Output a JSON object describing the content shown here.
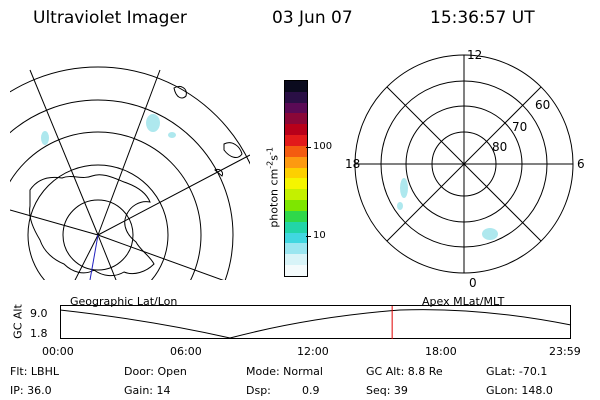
{
  "header": {
    "title": "Ultraviolet Imager",
    "date": "03 Jun 07",
    "time": "15:36:57 UT"
  },
  "geo_panel": {
    "label": "Geographic Lat/Lon"
  },
  "apex_panel": {
    "label": "Apex MLat/MLT",
    "mlt_labels": {
      "top": "12",
      "left": "18",
      "right": "6",
      "bottom": "0"
    },
    "mlat_labels": [
      "60",
      "70",
      "80"
    ]
  },
  "colorbar": {
    "unit_prefix": "photon cm",
    "unit_exp1": "-2",
    "unit_mid": "s",
    "unit_exp2": "-1",
    "ticks": [
      "100",
      "10"
    ],
    "colors": [
      "#0b0b1e",
      "#2a0f45",
      "#5a0a55",
      "#8a0738",
      "#b8001a",
      "#e21a1a",
      "#f45c10",
      "#fd9a10",
      "#fdd000",
      "#f5f500",
      "#c4f000",
      "#7ee600",
      "#2fd84a",
      "#22d5a8",
      "#40d7e0",
      "#9ae6f0",
      "#d8f4f8",
      "#f4fbfc"
    ]
  },
  "altitude_plot": {
    "ylabel": "GC Alt",
    "yticks": [
      "9.0",
      "1.8"
    ],
    "xticks": [
      "00:00",
      "06:00",
      "12:00",
      "18:00",
      "23:59"
    ],
    "current_time_hours": 15.6
  },
  "info": {
    "filter_label": "Flt: LBHL",
    "ip_label": "IP: 36.0",
    "door_label": "Door: Open",
    "gain_label": "Gain: 14",
    "mode_label": "Mode: Normal",
    "dsp_label": "Dsp:",
    "dsp_value": "0.9",
    "gcalt_label": "GC Alt: 8.8 Re",
    "seq_label": "Seq: 39",
    "glat_label": "GLat: -70.1",
    "glon_label": "GLon: 148.0"
  },
  "colors": {
    "current_time_marker": "#e00000",
    "auroral_glow": "#aee8ee"
  }
}
